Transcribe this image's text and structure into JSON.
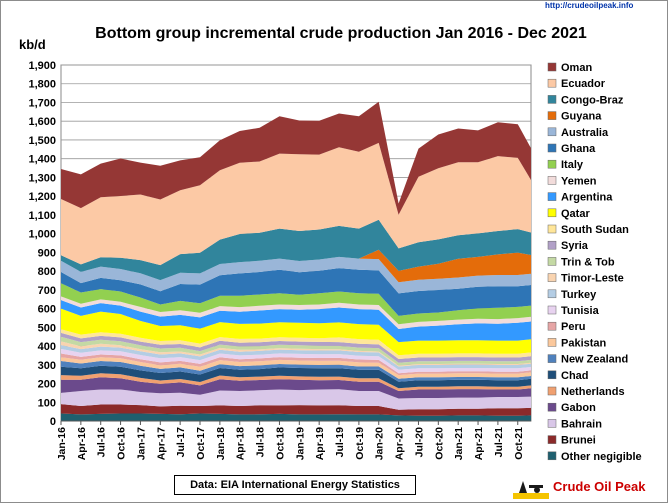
{
  "chart_data": {
    "type": "area",
    "stacked": true,
    "title": "Bottom group incremental crude production Jan 2016 - Dec 2021",
    "y_unit_label": "kb/d",
    "ylim": [
      0,
      1900
    ],
    "y_ticks": [
      0,
      100,
      200,
      300,
      400,
      500,
      600,
      700,
      800,
      900,
      1000,
      1100,
      1200,
      1300,
      1400,
      1500,
      1600,
      1700,
      1800,
      1900
    ],
    "y_tick_labels": [
      "0",
      "100",
      "200",
      "300",
      "400",
      "500",
      "600",
      "700",
      "800",
      "900",
      "1,000",
      "1,100",
      "1,200",
      "1,300",
      "1,400",
      "1,500",
      "1,600",
      "1,700",
      "1,800",
      "1,900"
    ],
    "x_tick_labels": [
      "Jan-16",
      "Apr-16",
      "Jul-16",
      "Oct-16",
      "Jan-17",
      "Apr-17",
      "Jul-17",
      "Oct-17",
      "Jan-18",
      "Apr-18",
      "Jul-18",
      "Oct-18",
      "Jan-19",
      "Apr-19",
      "Jul-19",
      "Oct-19",
      "Jan-20",
      "Apr-20",
      "Jul-20",
      "Oct-20",
      "Jan-21",
      "Apr-21",
      "Jul-21",
      "Oct-21"
    ],
    "x_ticks": [
      "2016-01",
      "2016-04",
      "2016-07",
      "2016-10",
      "2017-01",
      "2017-04",
      "2017-07",
      "2017-10",
      "2018-01",
      "2018-04",
      "2018-07",
      "2018-10",
      "2019-01",
      "2019-04",
      "2019-07",
      "2019-10",
      "2020-01",
      "2020-04",
      "2020-07",
      "2020-10",
      "2021-01",
      "2021-04",
      "2021-07",
      "2021-10"
    ],
    "x": [
      "2016-01",
      "2016-04",
      "2016-07",
      "2016-10",
      "2017-01",
      "2017-04",
      "2017-07",
      "2017-10",
      "2018-01",
      "2018-04",
      "2018-07",
      "2018-10",
      "2019-01",
      "2019-04",
      "2019-07",
      "2019-10",
      "2020-01",
      "2020-04",
      "2020-07",
      "2020-10",
      "2021-01",
      "2021-04",
      "2021-07",
      "2021-10",
      "2021-12"
    ],
    "grid": true,
    "legend_position": "right",
    "series": [
      {
        "name": "Other negigible",
        "color": "#1f5f6e",
        "values": [
          40,
          35,
          38,
          40,
          40,
          38,
          36,
          40,
          38,
          35,
          36,
          38,
          35,
          35,
          36,
          35,
          35,
          30,
          28,
          28,
          30,
          30,
          28,
          28,
          30
        ]
      },
      {
        "name": "Brunei",
        "color": "#8b2a2a",
        "values": [
          50,
          45,
          50,
          48,
          45,
          40,
          45,
          40,
          45,
          45,
          48,
          45,
          50,
          48,
          48,
          45,
          45,
          30,
          35,
          35,
          35,
          35,
          40,
          40,
          40
        ]
      },
      {
        "name": "Bahrain",
        "color": "#d9c7e8",
        "values": [
          60,
          80,
          80,
          80,
          70,
          70,
          70,
          60,
          80,
          80,
          80,
          85,
          80,
          85,
          85,
          80,
          80,
          60,
          60,
          60,
          60,
          60,
          60,
          60,
          60
        ]
      },
      {
        "name": "Gabon",
        "color": "#6b4a8c",
        "values": [
          70,
          60,
          65,
          60,
          55,
          50,
          55,
          50,
          60,
          55,
          55,
          55,
          55,
          50,
          50,
          50,
          50,
          40,
          45,
          45,
          45,
          45,
          40,
          40,
          45
        ]
      },
      {
        "name": "Netherlands",
        "color": "#f0a070",
        "values": [
          25,
          22,
          22,
          22,
          20,
          18,
          18,
          18,
          20,
          18,
          18,
          18,
          18,
          18,
          18,
          18,
          18,
          15,
          15,
          15,
          15,
          15,
          15,
          15,
          15
        ]
      },
      {
        "name": "Chad",
        "color": "#1f4e79",
        "values": [
          45,
          40,
          40,
          40,
          40,
          40,
          40,
          40,
          40,
          40,
          40,
          45,
          45,
          45,
          45,
          45,
          45,
          35,
          35,
          35,
          35,
          35,
          35,
          35,
          35
        ]
      },
      {
        "name": "New Zealand",
        "color": "#4f81bd",
        "values": [
          30,
          25,
          25,
          25,
          25,
          22,
          22,
          20,
          20,
          20,
          20,
          18,
          18,
          18,
          18,
          18,
          18,
          15,
          15,
          15,
          15,
          15,
          15,
          15,
          15
        ]
      },
      {
        "name": "Pakistan",
        "color": "#fbc89c",
        "values": [
          20,
          20,
          20,
          20,
          20,
          20,
          20,
          22,
          22,
          22,
          22,
          22,
          22,
          22,
          22,
          22,
          20,
          20,
          20,
          20,
          20,
          20,
          20,
          20,
          20
        ]
      },
      {
        "name": "Peru",
        "color": "#e6a5a5",
        "values": [
          20,
          15,
          15,
          15,
          15,
          15,
          15,
          15,
          15,
          15,
          15,
          15,
          15,
          15,
          15,
          15,
          15,
          10,
          10,
          10,
          10,
          10,
          10,
          10,
          10
        ]
      },
      {
        "name": "Tunisia",
        "color": "#e8d3f0",
        "values": [
          25,
          22,
          22,
          22,
          22,
          22,
          20,
          20,
          20,
          20,
          20,
          20,
          20,
          20,
          20,
          20,
          20,
          18,
          18,
          18,
          18,
          18,
          18,
          18,
          18
        ]
      },
      {
        "name": "Turkey",
        "color": "#b4cde4",
        "values": [
          20,
          20,
          20,
          20,
          20,
          20,
          20,
          20,
          20,
          20,
          20,
          20,
          20,
          20,
          20,
          20,
          20,
          18,
          18,
          18,
          18,
          18,
          18,
          18,
          18
        ]
      },
      {
        "name": "Timor-Leste",
        "color": "#f9d4b0",
        "values": [
          20,
          15,
          15,
          12,
          12,
          12,
          10,
          10,
          10,
          10,
          8,
          8,
          8,
          8,
          6,
          6,
          5,
          5,
          5,
          5,
          5,
          5,
          5,
          5,
          5
        ]
      },
      {
        "name": "Trin & Tob",
        "color": "#c4d9a4",
        "values": [
          25,
          22,
          22,
          22,
          20,
          20,
          20,
          18,
          18,
          18,
          18,
          18,
          18,
          18,
          18,
          18,
          18,
          15,
          15,
          15,
          15,
          15,
          15,
          15,
          15
        ]
      },
      {
        "name": "Syria",
        "color": "#b1a0c7",
        "values": [
          20,
          20,
          20,
          20,
          20,
          20,
          20,
          20,
          20,
          20,
          20,
          20,
          20,
          20,
          20,
          20,
          20,
          20,
          20,
          20,
          20,
          20,
          20,
          20,
          20
        ]
      },
      {
        "name": "South Sudan",
        "color": "#ffe699",
        "values": [
          20,
          20,
          20,
          20,
          20,
          20,
          20,
          20,
          20,
          20,
          20,
          20,
          20,
          20,
          25,
          25,
          25,
          20,
          20,
          20,
          20,
          20,
          20,
          20,
          20
        ]
      },
      {
        "name": "Qatar",
        "color": "#ffff00",
        "values": [
          110,
          100,
          110,
          105,
          90,
          80,
          80,
          80,
          80,
          80,
          80,
          80,
          80,
          80,
          80,
          80,
          80,
          70,
          70,
          70,
          70,
          70,
          70,
          70,
          70
        ]
      },
      {
        "name": "Argentina",
        "color": "#3399ff",
        "values": [
          45,
          45,
          45,
          45,
          50,
          50,
          55,
          60,
          60,
          65,
          70,
          70,
          70,
          75,
          80,
          80,
          80,
          70,
          75,
          80,
          85,
          90,
          90,
          95,
          95
        ]
      },
      {
        "name": "Yemen",
        "color": "#f2dcdb",
        "values": [
          20,
          20,
          20,
          20,
          25,
          25,
          25,
          25,
          25,
          25,
          25,
          25,
          25,
          25,
          25,
          25,
          25,
          25,
          25,
          25,
          25,
          25,
          25,
          25,
          25
        ]
      },
      {
        "name": "Italy",
        "color": "#92d050",
        "values": [
          70,
          60,
          55,
          55,
          50,
          40,
          50,
          50,
          55,
          60,
          60,
          60,
          55,
          60,
          60,
          60,
          60,
          45,
          45,
          45,
          50,
          55,
          60,
          60,
          60
        ]
      },
      {
        "name": "Ghana",
        "color": "#2e75b6",
        "values": [
          60,
          50,
          60,
          60,
          70,
          70,
          90,
          100,
          110,
          120,
          120,
          125,
          120,
          120,
          125,
          125,
          125,
          120,
          120,
          120,
          115,
          115,
          115,
          110,
          110
        ]
      },
      {
        "name": "Australia",
        "color": "#9ab6d8",
        "values": [
          60,
          60,
          60,
          60,
          60,
          60,
          60,
          60,
          60,
          60,
          60,
          60,
          60,
          60,
          60,
          60,
          60,
          60,
          60,
          60,
          60,
          60,
          60,
          60,
          60
        ]
      },
      {
        "name": "Guyana",
        "color": "#e46c0a",
        "values": [
          0,
          0,
          0,
          0,
          0,
          0,
          0,
          0,
          0,
          0,
          0,
          0,
          0,
          0,
          0,
          0,
          50,
          60,
          70,
          80,
          100,
          100,
          110,
          120,
          100
        ]
      },
      {
        "name": "Congo-Braz",
        "color": "#31859c",
        "values": [
          30,
          40,
          50,
          60,
          70,
          80,
          100,
          110,
          130,
          150,
          150,
          160,
          160,
          160,
          165,
          160,
          160,
          120,
          130,
          130,
          125,
          125,
          125,
          125,
          120
        ]
      },
      {
        "name": "Ecuador",
        "color": "#fcc9a5",
        "values": [
          300,
          300,
          320,
          330,
          350,
          350,
          340,
          360,
          370,
          380,
          380,
          400,
          410,
          400,
          420,
          410,
          410,
          180,
          350,
          380,
          390,
          380,
          400,
          380,
          280
        ]
      },
      {
        "name": "Oman",
        "color": "#953735",
        "values": [
          160,
          180,
          180,
          200,
          170,
          180,
          160,
          150,
          160,
          170,
          180,
          200,
          180,
          180,
          180,
          190,
          220,
          60,
          150,
          180,
          180,
          170,
          180,
          180,
          170
        ]
      }
    ]
  },
  "source_box": {
    "text": "Data: EIA International Energy Statistics"
  },
  "brand": {
    "url": "http://crudeoilpeak.info",
    "name": "Crude Oil Peak"
  }
}
